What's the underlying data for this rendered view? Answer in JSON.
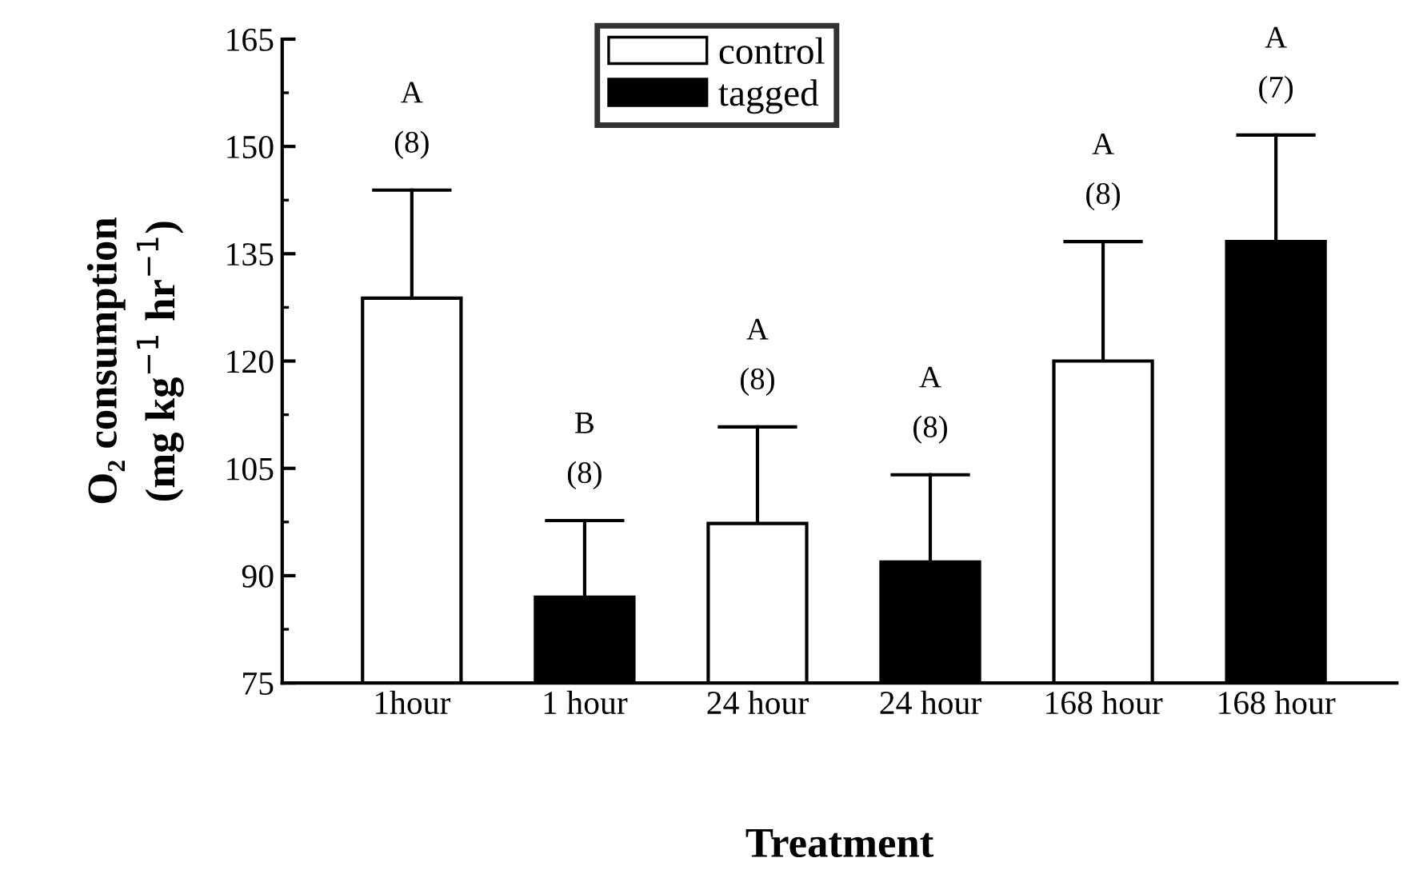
{
  "chart_data": {
    "type": "bar",
    "xlabel": "Treatment",
    "ylabel": "O₂ consumption\n(mg kg$^{−1}$ hr$^{−1}$)",
    "categories": [
      "1hour",
      "1 hour",
      "24 hour",
      "24 hour",
      "168 hour",
      "168 hour"
    ],
    "series": [
      {
        "name": "control",
        "color": "#ffffff",
        "values": [
          128.8,
          null,
          97.3,
          null,
          120.0,
          null
        ],
        "errors": [
          [
            128.8,
            143.9
          ],
          null,
          [
            97.3,
            110.8
          ],
          null,
          [
            120.0,
            136.7
          ],
          null
        ]
      },
      {
        "name": "tagged",
        "color": "#000000",
        "values": [
          null,
          87.0,
          null,
          91.9,
          null,
          136.7
        ],
        "errors": [
          null,
          [
            87.0,
            97.7
          ],
          null,
          [
            91.9,
            104.1
          ],
          null,
          [
            136.7,
            151.6
          ]
        ]
      }
    ],
    "ylim": [
      75,
      165
    ],
    "yticks": [
      75,
      90,
      105,
      120,
      135,
      150,
      165
    ],
    "legend": "top",
    "annotations": [
      "A\n(8)",
      "B\n(8)",
      "A\n(8)",
      "A\n(8)",
      "A\n(8)",
      "A\n(7)"
    ]
  }
}
